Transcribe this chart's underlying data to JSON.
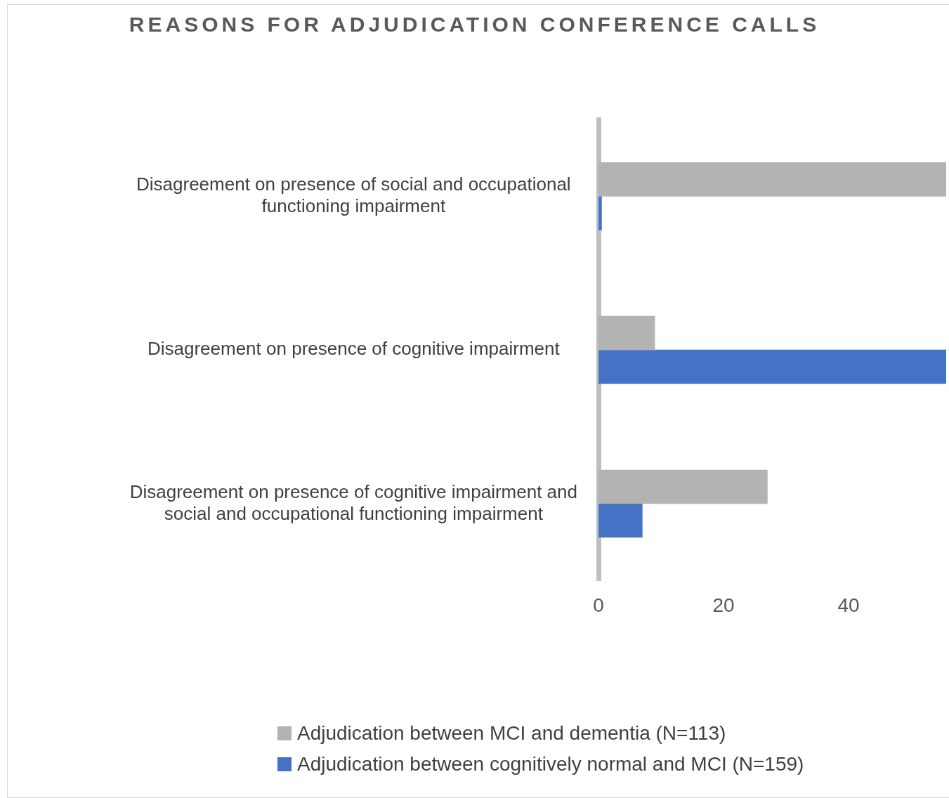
{
  "chart_data": {
    "type": "bar",
    "orientation": "horizontal",
    "title": "REASONS FOR ADJUDICATION CONFERENCE CALLS",
    "categories": [
      "Disagreement on presence of social and occupational functioning impairment",
      "Disagreement on presence of cognitive impairment",
      "Disagreement on presence of cognitive impairment and social and occupational functioning impairment"
    ],
    "series": [
      {
        "name": "Adjudication between MCI and dementia (N=113)",
        "color": "#b3b3b3",
        "values": [
          55.6,
          9,
          27
        ]
      },
      {
        "name": "Adjudication between cognitively normal and MCI (N=159)",
        "color": "#4472c4",
        "values": [
          0.5,
          55.6,
          7
        ]
      }
    ],
    "xlim": [
      0,
      55.6
    ],
    "xticks": [
      0,
      20,
      40
    ],
    "grid": false,
    "legend": "bottom"
  }
}
